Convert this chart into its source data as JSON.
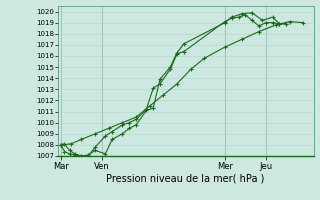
{
  "title": "",
  "xlabel": "Pression niveau de la mer( hPa )",
  "bg_color": "#cce8e0",
  "grid_color_minor": "#b8d8d0",
  "grid_color_major": "#a0c8be",
  "line_color": "#1a6b1a",
  "ylim": [
    1007,
    1020.5
  ],
  "yticks": [
    1007,
    1008,
    1009,
    1010,
    1011,
    1012,
    1013,
    1014,
    1015,
    1016,
    1017,
    1018,
    1019,
    1020
  ],
  "xtick_labels": [
    "Mar",
    "Ven",
    "Mer",
    "Jeu"
  ],
  "xtick_positions": [
    0,
    24,
    96,
    120
  ],
  "xlim": [
    -2,
    148
  ],
  "vline_color": "#5a9a8a",
  "series1_x": [
    0,
    2,
    5,
    8,
    12,
    16,
    20,
    26,
    30,
    36,
    40,
    44,
    50,
    54,
    58,
    64,
    68,
    72,
    96,
    100,
    104,
    108,
    112,
    116,
    120,
    124,
    128,
    132
  ],
  "series1_y": [
    1008.0,
    1008.1,
    1007.5,
    1007.2,
    1007.0,
    1007.0,
    1007.8,
    1008.8,
    1009.2,
    1009.8,
    1010.0,
    1010.3,
    1011.2,
    1013.1,
    1013.5,
    1014.8,
    1016.2,
    1016.4,
    1019.1,
    1019.4,
    1019.5,
    1019.7,
    1019.2,
    1018.7,
    1019.0,
    1019.0,
    1018.9,
    1018.9
  ],
  "series2_x": [
    0,
    2,
    5,
    8,
    12,
    16,
    20,
    26,
    30,
    36,
    40,
    44,
    50,
    54,
    58,
    64,
    68,
    72,
    96,
    100,
    106,
    112,
    118,
    124,
    128,
    132
  ],
  "series2_y": [
    1008.0,
    1007.4,
    1007.2,
    1007.1,
    1007.0,
    1007.1,
    1007.5,
    1007.2,
    1008.5,
    1009.0,
    1009.5,
    1009.8,
    1011.1,
    1011.3,
    1013.9,
    1015.0,
    1016.3,
    1017.1,
    1019.0,
    1019.5,
    1019.8,
    1019.9,
    1019.2,
    1019.5,
    1018.9,
    1018.9
  ],
  "series3_x": [
    0,
    6,
    12,
    20,
    28,
    36,
    44,
    52,
    60,
    68,
    76,
    84,
    96,
    106,
    116,
    126,
    134,
    142
  ],
  "series3_y": [
    1008.0,
    1008.1,
    1008.5,
    1009.0,
    1009.5,
    1010.0,
    1010.5,
    1011.5,
    1012.5,
    1013.5,
    1014.8,
    1015.8,
    1016.8,
    1017.5,
    1018.2,
    1018.8,
    1019.1,
    1019.0
  ]
}
